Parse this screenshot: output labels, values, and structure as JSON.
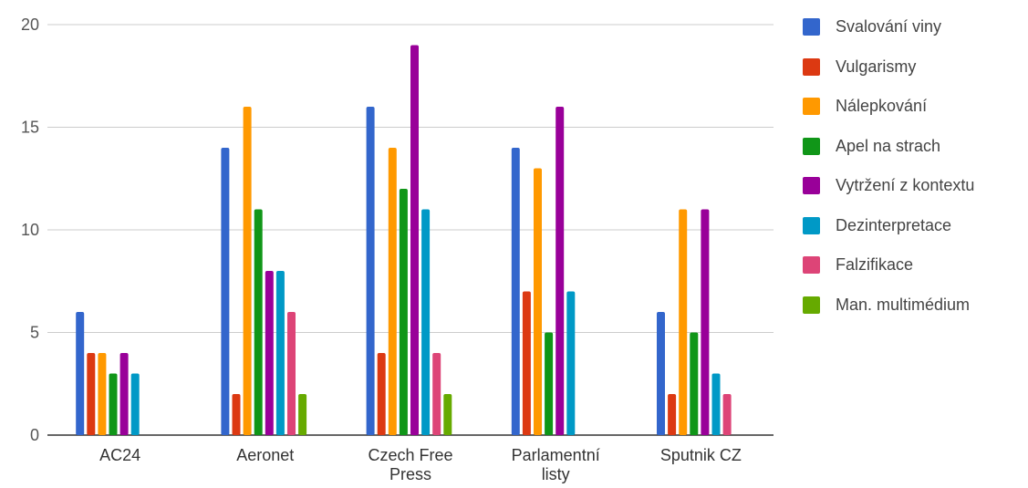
{
  "chart_data": {
    "type": "bar",
    "categories": [
      [
        "AC24"
      ],
      [
        "Aeronet"
      ],
      [
        "Czech Free",
        "Press"
      ],
      [
        "Parlamentní",
        "listy"
      ],
      [
        "Sputnik CZ"
      ]
    ],
    "ylim": [
      0,
      20
    ],
    "yticks": [
      0,
      5,
      10,
      15,
      20
    ],
    "grid": true,
    "legend_position": "right",
    "series": [
      {
        "name": "Svalování viny",
        "color": "#3366cc",
        "values": [
          6,
          14,
          16,
          14,
          6
        ]
      },
      {
        "name": "Vulgarismy",
        "color": "#dc3912",
        "values": [
          4,
          2,
          4,
          7,
          2
        ]
      },
      {
        "name": "Nálepkování",
        "color": "#ff9900",
        "values": [
          4,
          16,
          14,
          13,
          11
        ]
      },
      {
        "name": "Apel na strach",
        "color": "#109618",
        "values": [
          3,
          11,
          12,
          5,
          5
        ]
      },
      {
        "name": "Vytržení z kontextu",
        "color": "#990099",
        "values": [
          4,
          8,
          19,
          16,
          11
        ]
      },
      {
        "name": "Dezinterpretace",
        "color": "#0099c6",
        "values": [
          3,
          8,
          11,
          7,
          3
        ]
      },
      {
        "name": "Falzifikace",
        "color": "#dd4477",
        "values": [
          0,
          6,
          4,
          0,
          2
        ]
      },
      {
        "name": "Man. multimédium",
        "color": "#66aa00",
        "values": [
          0,
          2,
          2,
          0,
          0
        ]
      }
    ]
  }
}
